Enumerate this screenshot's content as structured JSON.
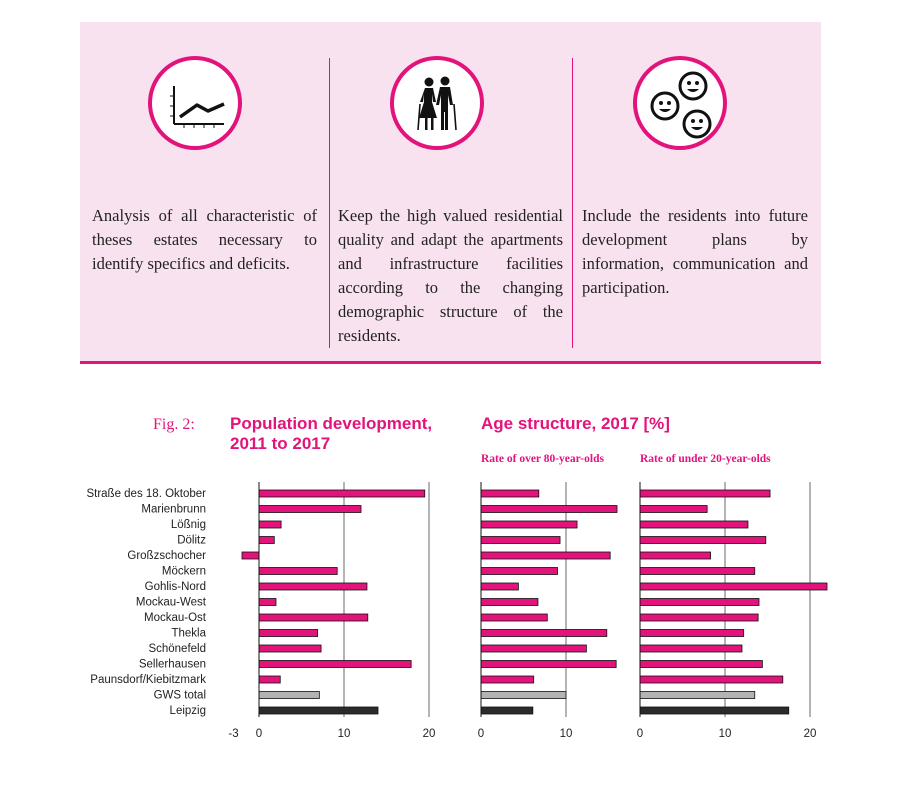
{
  "colors": {
    "accent": "#e3137c",
    "gws_bar": "#b3b3b3",
    "leipzig_bar": "#2b2b2b"
  },
  "columns": [
    {
      "icon": "line-chart-icon",
      "text": "Analysis of all characteristic of theses estates necessary to identify specifics and deficits."
    },
    {
      "icon": "elderly-couple-icon",
      "text": "Keep the high valued resi­dential quality and adapt the apartments and infrastruc­ture facilities according to the changing demographic struc­ture of the residents."
    },
    {
      "icon": "smiley-faces-icon",
      "text": "Include the residents into fu­ture development plans by information, communication and participation."
    }
  ],
  "figure": {
    "label": "Fig. 2:",
    "title_population": "Population development, 2011 to 2017",
    "title_age": "Age structure, 2017 [%]"
  },
  "chart_data": [
    {
      "type": "bar",
      "orientation": "horizontal",
      "title": "Population development, 2011 to 2017",
      "categories": [
        "Straße des 18. Oktober",
        "Marienbrunn",
        "Lößnig",
        "Dölitz",
        "Großzschocher",
        "Möckern",
        "Gohlis-Nord",
        "Mockau-West",
        "Mockau-Ost",
        "Thekla",
        "Schönefeld",
        "Sellerhausen",
        "Paunsdorf/Kiebitzmark",
        "GWS total",
        "Leipzig"
      ],
      "values": [
        19.5,
        12,
        2.6,
        1.8,
        -2,
        9.2,
        12.7,
        2,
        12.8,
        6.9,
        7.3,
        17.9,
        2.5,
        7.1,
        14
      ],
      "xlim": [
        -3,
        20
      ],
      "ticks": [
        -3,
        0,
        10,
        20
      ],
      "grid": true
    },
    {
      "type": "bar",
      "orientation": "horizontal",
      "title": "Rate of over 80-year-olds",
      "categories": [
        "Straße des 18. Oktober",
        "Marienbrunn",
        "Lößnig",
        "Dölitz",
        "Großzschocher",
        "Möckern",
        "Gohlis-Nord",
        "Mockau-West",
        "Mockau-Ost",
        "Thekla",
        "Schönefeld",
        "Sellerhausen",
        "Paunsdorf/Kiebitzmark",
        "GWS total",
        "Leipzig"
      ],
      "values": [
        6.8,
        16,
        11.3,
        9.3,
        15.2,
        9,
        4.4,
        6.7,
        7.8,
        14.8,
        12.4,
        15.9,
        6.2,
        10,
        6.1
      ],
      "xlim": [
        0,
        18
      ],
      "ticks": [
        0,
        10
      ],
      "grid": true
    },
    {
      "type": "bar",
      "orientation": "horizontal",
      "title": "Rate of under 20-year-olds",
      "categories": [
        "Straße des 18. Oktober",
        "Marienbrunn",
        "Lößnig",
        "Dölitz",
        "Großzschocher",
        "Möckern",
        "Gohlis-Nord",
        "Mockau-West",
        "Mockau-Ost",
        "Thekla",
        "Schönefeld",
        "Sellerhausen",
        "Paunsdorf/Kiebitzmark",
        "GWS total",
        "Leipzig"
      ],
      "values": [
        15.3,
        7.9,
        12.7,
        14.8,
        8.3,
        13.5,
        22,
        14,
        13.9,
        12.2,
        12,
        14.4,
        16.8,
        13.5,
        17.5
      ],
      "xlim": [
        0,
        22
      ],
      "ticks": [
        0,
        10,
        20
      ],
      "grid": true
    }
  ]
}
